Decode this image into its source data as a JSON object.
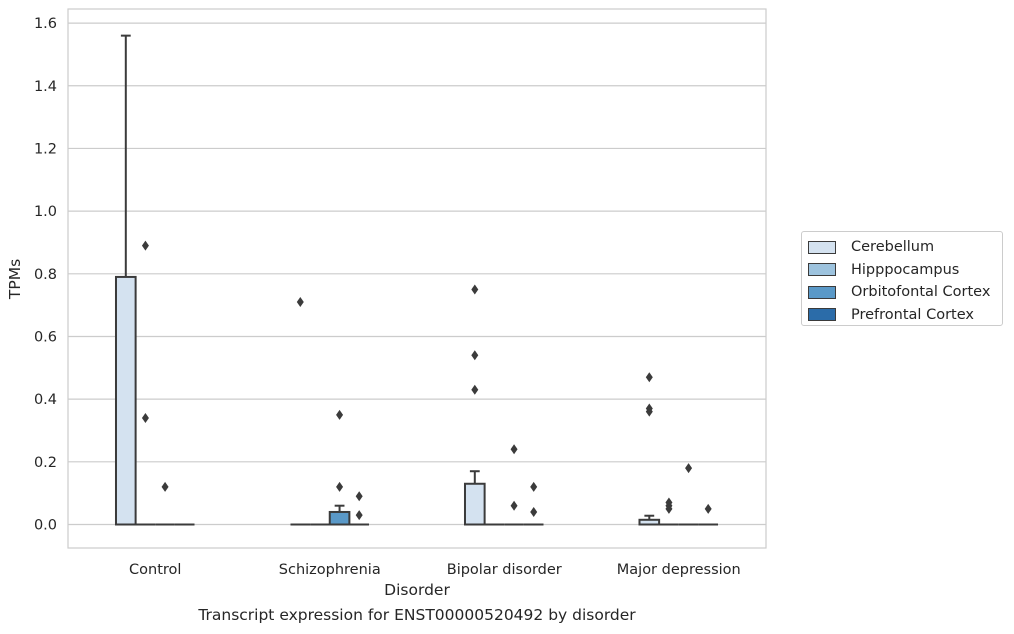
{
  "caption": "Transcript expression for ENST00000520492 by disorder",
  "chart_data": {
    "type": "box",
    "xlabel": "Disorder",
    "ylabel": "TPMs",
    "ylim": [
      -0.075,
      1.645
    ],
    "yticks": [
      0.0,
      0.2,
      0.4,
      0.6,
      0.8,
      1.0,
      1.2,
      1.4,
      1.6
    ],
    "ytick_labels": [
      "0.0",
      "0.2",
      "0.4",
      "0.6",
      "0.8",
      "1.0",
      "1.2",
      "1.4",
      "1.6"
    ],
    "grid": true,
    "legend_position": "right",
    "categories": [
      "Control",
      "Schizophrenia",
      "Bipolar disorder",
      "Major depression"
    ],
    "series": [
      {
        "name": "Cerebellum",
        "color": "#d4e2f0",
        "boxes": [
          {
            "q1": 0.0,
            "median": 0.0,
            "q3": 0.79,
            "whisker_low": 0.0,
            "whisker_high": 1.56,
            "outliers": []
          },
          {
            "q1": 0.0,
            "median": 0.0,
            "q3": 0.0,
            "whisker_low": 0.0,
            "whisker_high": 0.0,
            "outliers": [
              0.71
            ]
          },
          {
            "q1": 0.0,
            "median": 0.0,
            "q3": 0.13,
            "whisker_low": 0.0,
            "whisker_high": 0.17,
            "outliers": [
              0.75,
              0.54,
              0.43
            ]
          },
          {
            "q1": 0.0,
            "median": 0.0,
            "q3": 0.015,
            "whisker_low": 0.0,
            "whisker_high": 0.028,
            "outliers": [
              0.47,
              0.37,
              0.36
            ]
          }
        ]
      },
      {
        "name": "Hipppocampus",
        "color": "#9dc3de",
        "boxes": [
          {
            "q1": 0.0,
            "median": 0.0,
            "q3": 0.0,
            "whisker_low": 0.0,
            "whisker_high": 0.0,
            "outliers": [
              0.89,
              0.34
            ]
          },
          {
            "q1": 0.0,
            "median": 0.0,
            "q3": 0.0,
            "whisker_low": 0.0,
            "whisker_high": 0.0,
            "outliers": []
          },
          {
            "q1": 0.0,
            "median": 0.0,
            "q3": 0.0,
            "whisker_low": 0.0,
            "whisker_high": 0.0,
            "outliers": []
          },
          {
            "q1": 0.0,
            "median": 0.0,
            "q3": 0.0,
            "whisker_low": 0.0,
            "whisker_high": 0.0,
            "outliers": [
              0.07,
              0.06,
              0.05
            ]
          }
        ]
      },
      {
        "name": "Orbitofontal Cortex",
        "color": "#5a99c8",
        "boxes": [
          {
            "q1": 0.0,
            "median": 0.0,
            "q3": 0.0,
            "whisker_low": 0.0,
            "whisker_high": 0.0,
            "outliers": [
              0.12
            ]
          },
          {
            "q1": 0.0,
            "median": 0.0,
            "q3": 0.04,
            "whisker_low": 0.0,
            "whisker_high": 0.06,
            "outliers": [
              0.35,
              0.12
            ]
          },
          {
            "q1": 0.0,
            "median": 0.0,
            "q3": 0.0,
            "whisker_low": 0.0,
            "whisker_high": 0.0,
            "outliers": [
              0.24,
              0.06
            ]
          },
          {
            "q1": 0.0,
            "median": 0.0,
            "q3": 0.0,
            "whisker_low": 0.0,
            "whisker_high": 0.0,
            "outliers": [
              0.18
            ]
          }
        ]
      },
      {
        "name": "Prefrontal Cortex",
        "color": "#2b6ca9",
        "boxes": [
          {
            "q1": 0.0,
            "median": 0.0,
            "q3": 0.0,
            "whisker_low": 0.0,
            "whisker_high": 0.0,
            "outliers": []
          },
          {
            "q1": 0.0,
            "median": 0.0,
            "q3": 0.0,
            "whisker_low": 0.0,
            "whisker_high": 0.0,
            "outliers": [
              0.09,
              0.03
            ]
          },
          {
            "q1": 0.0,
            "median": 0.0,
            "q3": 0.0,
            "whisker_low": 0.0,
            "whisker_high": 0.0,
            "outliers": [
              0.12,
              0.04
            ]
          },
          {
            "q1": 0.0,
            "median": 0.0,
            "q3": 0.0,
            "whisker_low": 0.0,
            "whisker_high": 0.0,
            "outliers": [
              0.05
            ]
          }
        ]
      }
    ]
  }
}
